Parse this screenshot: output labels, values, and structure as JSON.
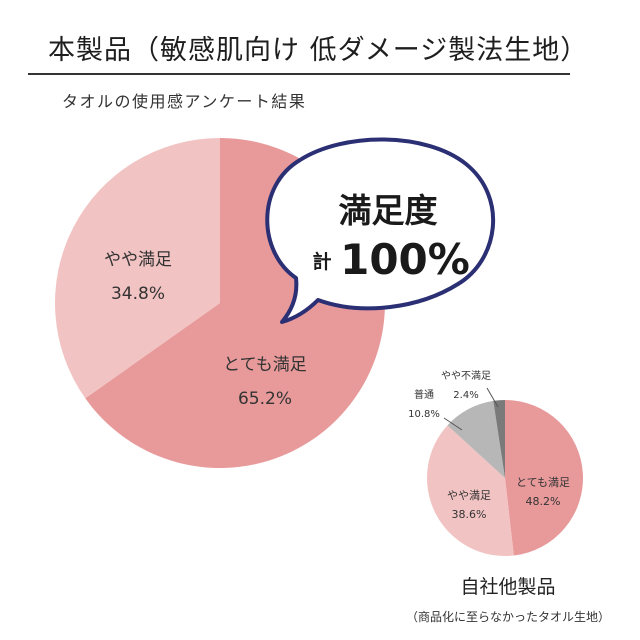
{
  "header": {
    "title": "本製品（敏感肌向け 低ダメージ製法生地）",
    "subtitle": "タオルの使用感アンケート結果"
  },
  "bubble": {
    "line1": "満足度",
    "prefix": "計",
    "value": "100%"
  },
  "comparison": {
    "title": "自社他製品",
    "note": "（商品化に至らなかったタオル生地）"
  },
  "colors": {
    "very_satisfied": "#e89a9b",
    "somewhat_satisfied": "#f2c3c3",
    "normal": "#b7b7b7",
    "somewhat_unsatisfied": "#7a7a7a",
    "bubble_border": "#2b2f73"
  },
  "chart_data": [
    {
      "type": "pie",
      "title": "本製品（敏感肌向け 低ダメージ製法生地）",
      "slices": [
        {
          "label": "とても満足",
          "value": 65.2,
          "display": "65.2%",
          "color": "#e89a9b"
        },
        {
          "label": "やや満足",
          "value": 34.8,
          "display": "34.8%",
          "color": "#f2c3c3"
        }
      ]
    },
    {
      "type": "pie",
      "title": "自社他製品",
      "slices": [
        {
          "label": "とても満足",
          "value": 48.2,
          "display": "48.2%",
          "color": "#e89a9b"
        },
        {
          "label": "やや満足",
          "value": 38.6,
          "display": "38.6%",
          "color": "#f2c3c3"
        },
        {
          "label": "普通",
          "value": 10.8,
          "display": "10.8%",
          "color": "#b7b7b7"
        },
        {
          "label": "やや不満足",
          "value": 2.4,
          "display": "2.4%",
          "color": "#7a7a7a"
        }
      ]
    }
  ]
}
